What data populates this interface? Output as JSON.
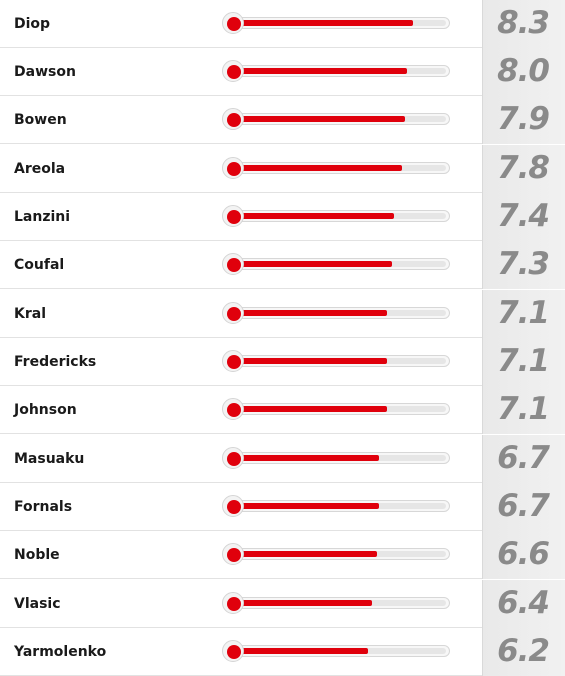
{
  "rating_scale_max": 10,
  "colors": {
    "bar_fill": "#e0000c",
    "score_text": "#8a8a8a",
    "score_background": "#ededed"
  },
  "players": [
    {
      "name": "Diop",
      "rating": "8.3"
    },
    {
      "name": "Dawson",
      "rating": "8.0"
    },
    {
      "name": "Bowen",
      "rating": "7.9"
    },
    {
      "name": "Areola",
      "rating": "7.8"
    },
    {
      "name": "Lanzini",
      "rating": "7.4"
    },
    {
      "name": "Coufal",
      "rating": "7.3"
    },
    {
      "name": "Kral",
      "rating": "7.1"
    },
    {
      "name": "Fredericks",
      "rating": "7.1"
    },
    {
      "name": "Johnson",
      "rating": "7.1"
    },
    {
      "name": "Masuaku",
      "rating": "6.7"
    },
    {
      "name": "Fornals",
      "rating": "6.7"
    },
    {
      "name": "Noble",
      "rating": "6.6"
    },
    {
      "name": "Vlasic",
      "rating": "6.4"
    },
    {
      "name": "Yarmolenko",
      "rating": "6.2"
    }
  ]
}
